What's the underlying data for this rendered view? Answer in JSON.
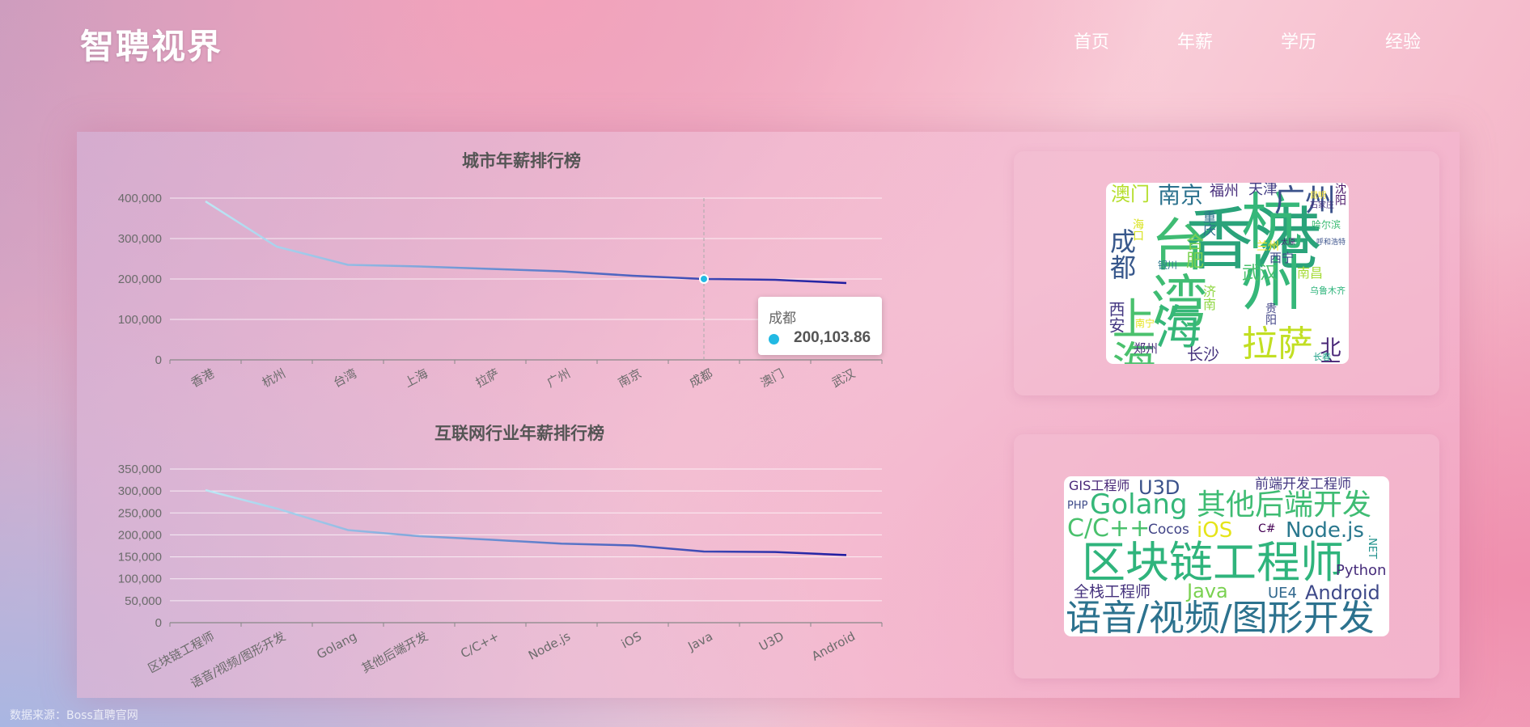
{
  "header": {
    "logo": "智聘视界",
    "nav": [
      {
        "label": "首页"
      },
      {
        "label": "年薪"
      },
      {
        "label": "学历"
      },
      {
        "label": "经验"
      }
    ]
  },
  "charts": {
    "city": {
      "title": "城市年薪排行榜",
      "yticks": [
        "0",
        "100,000",
        "200,000",
        "300,000",
        "400,000"
      ],
      "tooltip": {
        "label": "成都",
        "value": "200,103.86"
      }
    },
    "industry": {
      "title": "互联网行业年薪排行榜",
      "yticks": [
        "0",
        "50,000",
        "100,000",
        "150,000",
        "200,000",
        "250,000",
        "300,000",
        "350,000"
      ]
    }
  },
  "chart_data": [
    {
      "type": "line",
      "title": "城市年薪排行榜",
      "categories": [
        "香港",
        "杭州",
        "台湾",
        "上海",
        "拉萨",
        "广州",
        "南京",
        "成都",
        "澳门",
        "武汉"
      ],
      "values": [
        392000,
        280000,
        235000,
        231000,
        225000,
        219000,
        208000,
        200103.86,
        198000,
        190000
      ],
      "ylim": [
        0,
        400000
      ],
      "grid": true,
      "highlight": {
        "category": "成都",
        "value": 200103.86
      }
    },
    {
      "type": "line",
      "title": "互联网行业年薪排行榜",
      "categories": [
        "区块链工程师",
        "语音/视频/图形开发",
        "Golang",
        "其他后端开发",
        "C/C++",
        "Node.js",
        "iOS",
        "Java",
        "U3D",
        "Android"
      ],
      "values": [
        302000,
        260000,
        211000,
        197000,
        189000,
        180000,
        176000,
        162000,
        161000,
        154000
      ],
      "ylim": [
        0,
        350000
      ],
      "grid": true
    }
  ],
  "wordclouds": {
    "city": [
      {
        "text": "香港",
        "color": "#2aa37a"
      },
      {
        "text": "杭州",
        "color": "#35b779"
      },
      {
        "text": "台湾",
        "color": "#3fbc73"
      },
      {
        "text": "上海",
        "color": "#4ac16d"
      },
      {
        "text": "海",
        "color": "#35b779"
      },
      {
        "text": "拉萨",
        "color": "#c2df23"
      },
      {
        "text": "广州",
        "color": "#3b528b"
      },
      {
        "text": "南京",
        "color": "#2c728e"
      },
      {
        "text": "成都",
        "color": "#38588c"
      },
      {
        "text": "北京",
        "color": "#482677"
      },
      {
        "text": "长沙",
        "color": "#46337e"
      },
      {
        "text": "武汉",
        "color": "#4ac16d"
      },
      {
        "text": "西安",
        "color": "#453882"
      },
      {
        "text": "福州",
        "color": "#472d7b"
      },
      {
        "text": "天津",
        "color": "#433e85"
      },
      {
        "text": "澳门",
        "color": "#b5de2b"
      },
      {
        "text": "沈阳",
        "color": "#481467"
      },
      {
        "text": "合肥",
        "color": "#7ad151"
      },
      {
        "text": "重庆",
        "color": "#2e6f8e"
      },
      {
        "text": "南昌",
        "color": "#a5db36"
      },
      {
        "text": "济南",
        "color": "#90d743"
      },
      {
        "text": "西宁",
        "color": "#3e4989"
      },
      {
        "text": "郑州",
        "color": "#472c7a"
      },
      {
        "text": "海口",
        "color": "#d8e219"
      },
      {
        "text": "贵阳",
        "color": "#414487"
      },
      {
        "text": "兰州",
        "color": "#fde725"
      },
      {
        "text": "银川",
        "color": "#2a788e"
      },
      {
        "text": "哈尔滨",
        "color": "#3dbc74"
      },
      {
        "text": "乌鲁木齐",
        "color": "#2fb47c"
      },
      {
        "text": "石家庄",
        "color": "#46327e"
      },
      {
        "text": "呼和浩特",
        "color": "#3b528b"
      },
      {
        "text": "昆明",
        "color": "#fde725"
      },
      {
        "text": "太原",
        "color": "#481f70"
      },
      {
        "text": "长春",
        "color": "#1fa187"
      },
      {
        "text": "南宁",
        "color": "#e5e419"
      }
    ],
    "industry": [
      {
        "text": "区块链工程师",
        "color": "#2fb47c"
      },
      {
        "text": "语音/视频/图形开发",
        "color": "#2c728e"
      },
      {
        "text": "Golang",
        "color": "#35b779"
      },
      {
        "text": "其他后端开发",
        "color": "#3fbc73"
      },
      {
        "text": "C/C++",
        "color": "#4ac16d"
      },
      {
        "text": "Node.js",
        "color": "#2a788e"
      },
      {
        "text": "iOS",
        "color": "#e5e419"
      },
      {
        "text": "Java",
        "color": "#7ad151"
      },
      {
        "text": "U3D",
        "color": "#3b528b"
      },
      {
        "text": "Android",
        "color": "#3e4989"
      },
      {
        "text": "Python",
        "color": "#472d7b"
      },
      {
        "text": "全栈工程师",
        "color": "#46337e"
      },
      {
        "text": "前端开发工程师",
        "color": "#453882"
      },
      {
        "text": "GIS工程师",
        "color": "#482677"
      },
      {
        "text": "Cocos",
        "color": "#414487"
      },
      {
        "text": "C#",
        "color": "#440154"
      },
      {
        "text": "PHP",
        "color": "#3e4a89"
      },
      {
        "text": "UE4",
        "color": "#31688e"
      },
      {
        "text": ".NET",
        "color": "#21918c"
      }
    ]
  },
  "footer": {
    "source": "数据来源：Boss直聘官网"
  }
}
